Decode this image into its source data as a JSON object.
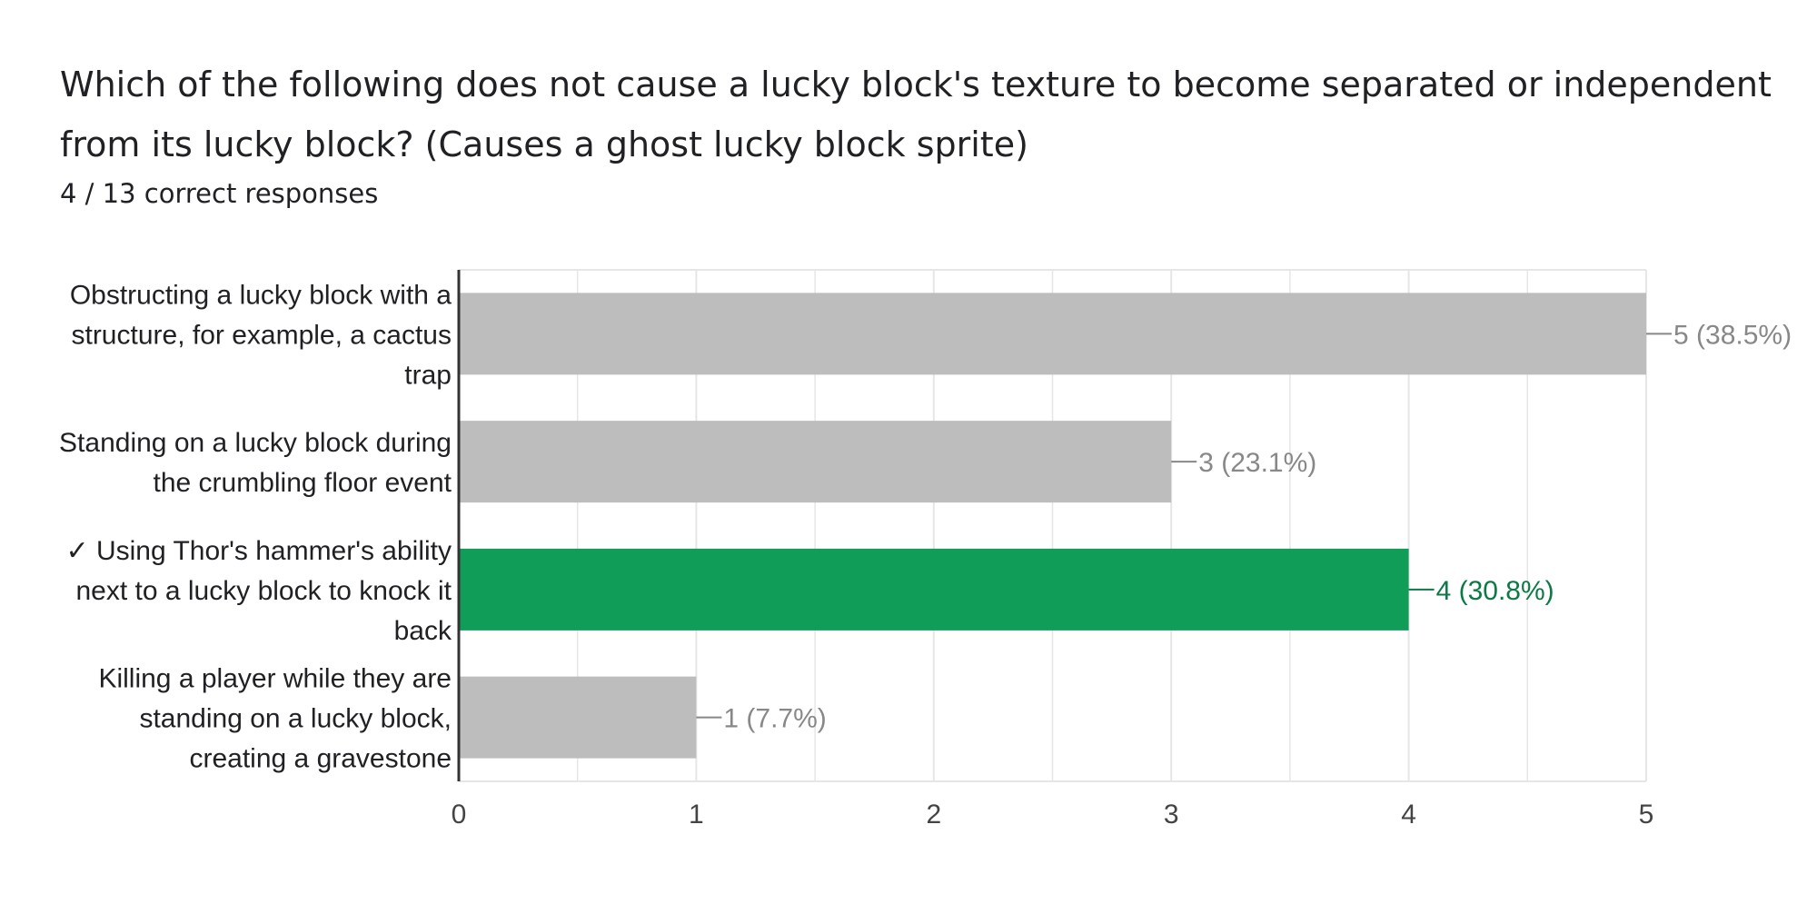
{
  "question": {
    "title": "Which of the following does not cause a lucky block's texture to become separated or independent from its lucky block? (Causes a ghost lucky block sprite)",
    "score_summary": "4 / 13 correct responses"
  },
  "colors": {
    "bar_default": "#bdbdbd",
    "bar_correct": "#0f9d58",
    "label_default": "#888888",
    "label_correct": "#0b7a44",
    "grid": "#e6e6e6",
    "axis": "#333333"
  },
  "chart_data": {
    "type": "bar",
    "orientation": "horizontal",
    "categories": [
      "Obstructing a lucky block with a structure, for example, a cactus trap",
      "Standing on a lucky block during the crumbling floor event",
      "✓ Using Thor's hammer's ability next to a lucky block to knock it back",
      "Killing a player while they are standing on a lucky block, creating a gravestone"
    ],
    "category_lines": [
      [
        "Obstructing a lucky block with a",
        "structure, for example, a cactus",
        "trap"
      ],
      [
        "Standing on a lucky block during",
        "the crumbling floor event"
      ],
      [
        "✓ Using Thor's hammer's ability",
        "next to a lucky block to knock it",
        "back"
      ],
      [
        "Killing a player while they are",
        "standing on a lucky block,",
        "creating a gravestone"
      ]
    ],
    "values": [
      5,
      3,
      4,
      1
    ],
    "value_labels": [
      "5 (38.5%)",
      "3 (23.1%)",
      "4 (30.8%)",
      "1 (7.7%)"
    ],
    "correct": [
      false,
      false,
      true,
      false
    ],
    "xlim": [
      0,
      5
    ],
    "xticks": [
      0,
      1,
      2,
      3,
      4,
      5
    ],
    "xtick_labels": [
      "0",
      "1",
      "2",
      "3",
      "4",
      "5"
    ],
    "grid": true,
    "legend": "none"
  }
}
